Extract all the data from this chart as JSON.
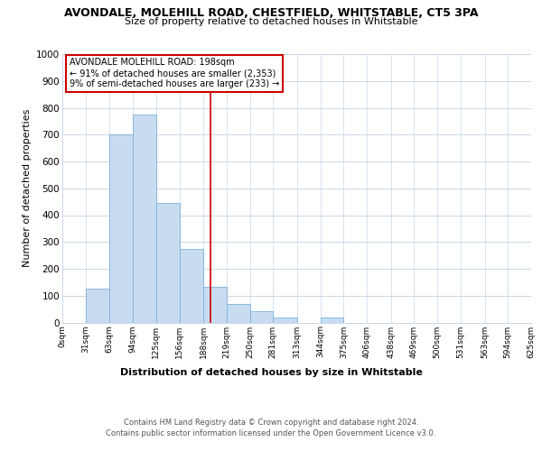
{
  "title": "AVONDALE, MOLEHILL ROAD, CHESTFIELD, WHITSTABLE, CT5 3PA",
  "subtitle": "Size of property relative to detached houses in Whitstable",
  "xlabel": "Distribution of detached houses by size in Whitstable",
  "ylabel": "Number of detached properties",
  "bar_color": "#c8dcf0",
  "bar_edge_color": "#7ab0d8",
  "background_color": "#ffffff",
  "grid_color": "#c8d8e8",
  "vline_x": 198,
  "vline_color": "#cc0000",
  "annotation_title": "AVONDALE MOLEHILL ROAD: 198sqm",
  "annotation_line1": "← 91% of detached houses are smaller (2,353)",
  "annotation_line2": "9% of semi-detached houses are larger (233) →",
  "annotation_box_color": "#ffffff",
  "annotation_box_edge_color": "#cc0000",
  "footnote1": "Contains HM Land Registry data © Crown copyright and database right 2024.",
  "footnote2": "Contains public sector information licensed under the Open Government Licence v3.0.",
  "bin_edges": [
    0,
    31,
    63,
    94,
    125,
    156,
    188,
    219,
    250,
    281,
    313,
    344,
    375,
    406,
    438,
    469,
    500,
    531,
    563,
    594,
    625
  ],
  "bin_heights": [
    0,
    125,
    700,
    775,
    445,
    275,
    132,
    70,
    42,
    18,
    0,
    18,
    0,
    0,
    0,
    0,
    0,
    0,
    0,
    0
  ],
  "ylim": [
    0,
    1000
  ],
  "xlim": [
    0,
    625
  ],
  "yticks": [
    0,
    100,
    200,
    300,
    400,
    500,
    600,
    700,
    800,
    900,
    1000
  ]
}
